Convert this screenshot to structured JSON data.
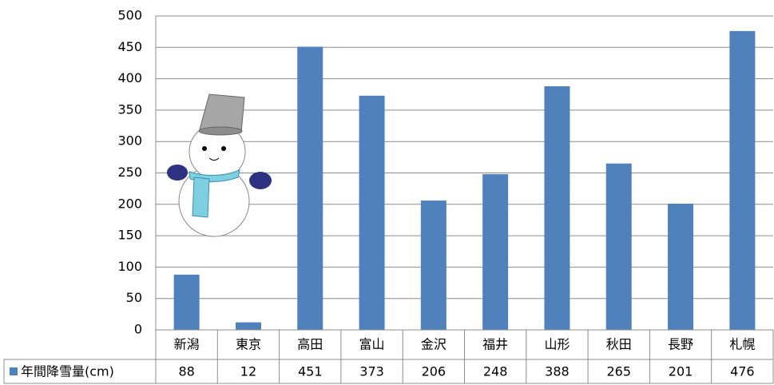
{
  "chart_data": {
    "type": "bar",
    "categories": [
      "新潟",
      "東京",
      "高田",
      "富山",
      "金沢",
      "福井",
      "山形",
      "秋田",
      "長野",
      "札幌"
    ],
    "series": [
      {
        "name": "年間降雪量(cm)",
        "color": "#4f81bd",
        "values": [
          88,
          12,
          451,
          373,
          206,
          248,
          388,
          265,
          201,
          476
        ]
      }
    ],
    "ylim": [
      0,
      500
    ],
    "yticks": [
      0,
      50,
      100,
      150,
      200,
      250,
      300,
      350,
      400,
      450,
      500
    ],
    "grid": true,
    "data_table": true
  }
}
